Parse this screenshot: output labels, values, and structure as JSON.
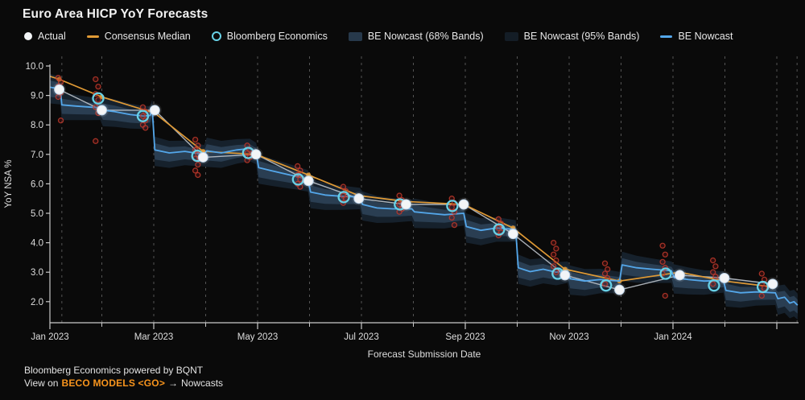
{
  "title": "Euro Area HICP YoY Forecasts",
  "legend": {
    "items": [
      {
        "label": "Actual",
        "marker": "dot",
        "color": "#f3f5f7"
      },
      {
        "label": "Consensus Median",
        "marker": "dash",
        "color": "#e09a35"
      },
      {
        "label": "Bloomberg Economics",
        "marker": "ring",
        "color": "#68d1e6"
      },
      {
        "label": "BE Nowcast (68% Bands)",
        "marker": "swatch",
        "color": "#27394b"
      },
      {
        "label": "BE Nowcast (95% Bands)",
        "marker": "swatch",
        "color": "#141d26"
      },
      {
        "label": "BE Nowcast",
        "marker": "dash",
        "color": "#54a7ea"
      }
    ]
  },
  "footer": {
    "line1": "Bloomberg Economics powered by BQNT",
    "view_on": "View on",
    "beco_link": "BECO MODELS <GO>",
    "arrow": "→",
    "nowcasts": "Nowcasts"
  },
  "colors": {
    "background": "#0a0a0a",
    "text": "#e6e6e6",
    "tick_text": "#dedede",
    "axis": "#c9c9c9",
    "gridline": "#545454",
    "nowcast_blue": "#54a7ea",
    "consensus_orange": "#e09a35",
    "be_cyan": "#68d1e6",
    "actual_white": "#f3f5f7",
    "actual_line_gray": "#c7cdd3",
    "economist_red": "#c0392b",
    "band68": "#2a3e52",
    "band95": "#16212c",
    "beco_orange": "#f7941d"
  },
  "chart_data": {
    "type": "line",
    "title": "Euro Area HICP YoY Forecasts",
    "xlabel": "Forecast Submission Date",
    "ylabel": "YoY NSA %",
    "x_unit": "months_since_jan_2023",
    "x_range": [
      0,
      14.4
    ],
    "y_range_ticks": [
      2,
      10
    ],
    "y_tick_labels": [
      "2.0",
      "3.0",
      "4.0",
      "5.0",
      "6.0",
      "7.0",
      "8.0",
      "9.0",
      "10.0"
    ],
    "x_major_tick_months": [
      0,
      2,
      4,
      6,
      8,
      10,
      12,
      14
    ],
    "x_major_tick_labels": [
      "Jan 2023",
      "Mar 2023",
      "May 2023",
      "Jul 2023",
      "Sep 2023",
      "Nov 2023",
      "Jan 2024",
      ""
    ],
    "x_minor_tick_months": [
      1,
      3,
      5,
      7,
      9,
      11,
      13
    ],
    "gridline_months": [
      0.23,
      1,
      2,
      3,
      4,
      5,
      6,
      7,
      8,
      9,
      10,
      11,
      12,
      13,
      14,
      14.39
    ],
    "grid": "vertical-dashed-only",
    "legend_position": "top",
    "series": {
      "nowcast": {
        "name": "BE Nowcast",
        "points": [
          [
            0.0,
            9.28
          ],
          [
            0.2,
            9.22
          ],
          [
            0.23,
            8.68
          ],
          [
            0.5,
            8.64
          ],
          [
            0.8,
            8.6
          ],
          [
            0.97,
            8.58
          ],
          [
            1.02,
            8.5
          ],
          [
            1.25,
            8.45
          ],
          [
            1.55,
            8.35
          ],
          [
            1.8,
            8.3
          ],
          [
            1.93,
            8.32
          ],
          [
            1.97,
            8.55
          ],
          [
            2.02,
            7.15
          ],
          [
            2.3,
            7.05
          ],
          [
            2.6,
            7.1
          ],
          [
            2.97,
            7.0
          ],
          [
            3.02,
            7.12
          ],
          [
            3.3,
            7.05
          ],
          [
            3.6,
            7.15
          ],
          [
            3.85,
            7.2
          ],
          [
            3.97,
            7.08
          ],
          [
            4.02,
            6.55
          ],
          [
            4.25,
            6.45
          ],
          [
            4.5,
            6.35
          ],
          [
            4.75,
            6.25
          ],
          [
            4.97,
            6.15
          ],
          [
            5.02,
            5.72
          ],
          [
            5.3,
            5.62
          ],
          [
            5.6,
            5.58
          ],
          [
            5.97,
            5.55
          ],
          [
            6.02,
            5.3
          ],
          [
            6.3,
            5.18
          ],
          [
            6.6,
            5.15
          ],
          [
            6.97,
            5.15
          ],
          [
            7.02,
            5.05
          ],
          [
            7.3,
            5.0
          ],
          [
            7.6,
            4.95
          ],
          [
            7.97,
            5.0
          ],
          [
            8.02,
            4.55
          ],
          [
            8.3,
            4.42
          ],
          [
            8.6,
            4.5
          ],
          [
            8.97,
            4.45
          ],
          [
            9.02,
            3.15
          ],
          [
            9.25,
            3.02
          ],
          [
            9.5,
            3.1
          ],
          [
            9.75,
            3.0
          ],
          [
            9.97,
            3.05
          ],
          [
            10.02,
            2.78
          ],
          [
            10.3,
            2.7
          ],
          [
            10.6,
            2.75
          ],
          [
            10.97,
            2.7
          ],
          [
            11.02,
            3.25
          ],
          [
            11.3,
            3.15
          ],
          [
            11.6,
            3.1
          ],
          [
            11.97,
            3.05
          ],
          [
            12.02,
            2.82
          ],
          [
            12.3,
            2.75
          ],
          [
            12.6,
            2.7
          ],
          [
            12.97,
            2.72
          ],
          [
            13.02,
            2.38
          ],
          [
            13.3,
            2.3
          ],
          [
            13.6,
            2.33
          ],
          [
            13.97,
            2.3
          ],
          [
            14.02,
            2.1
          ],
          [
            14.15,
            2.15
          ],
          [
            14.25,
            1.95
          ],
          [
            14.33,
            2.0
          ],
          [
            14.4,
            1.88
          ]
        ]
      },
      "consensus": {
        "name": "Consensus Median",
        "points": [
          [
            0.0,
            9.65
          ],
          [
            0.18,
            9.55
          ],
          [
            1.0,
            8.95
          ],
          [
            2.02,
            8.4
          ],
          [
            2.95,
            7.1
          ],
          [
            3.97,
            7.0
          ],
          [
            4.98,
            6.3
          ],
          [
            5.95,
            5.6
          ],
          [
            6.86,
            5.4
          ],
          [
            7.97,
            5.3
          ],
          [
            8.92,
            4.5
          ],
          [
            9.92,
            3.1
          ],
          [
            10.97,
            2.7
          ],
          [
            12.13,
            3.0
          ],
          [
            12.99,
            2.7
          ],
          [
            13.92,
            2.5
          ]
        ]
      },
      "actual": {
        "name": "Actual",
        "points": [
          [
            0.18,
            9.2
          ],
          [
            1.0,
            8.5
          ],
          [
            2.02,
            8.5
          ],
          [
            2.95,
            6.9
          ],
          [
            3.97,
            7.0
          ],
          [
            4.98,
            6.1
          ],
          [
            5.95,
            5.5
          ],
          [
            6.86,
            5.3
          ],
          [
            7.97,
            5.3
          ],
          [
            8.92,
            4.3
          ],
          [
            9.92,
            2.9
          ],
          [
            10.97,
            2.4
          ],
          [
            12.13,
            2.9
          ],
          [
            12.99,
            2.8
          ],
          [
            13.92,
            2.6
          ]
        ]
      },
      "bloomberg_economics": {
        "name": "Bloomberg Economics",
        "points": [
          [
            0.93,
            8.9
          ],
          [
            1.79,
            8.3
          ],
          [
            2.84,
            6.95
          ],
          [
            3.82,
            7.05
          ],
          [
            4.78,
            6.15
          ],
          [
            5.66,
            5.55
          ],
          [
            6.74,
            5.3
          ],
          [
            7.75,
            5.25
          ],
          [
            8.65,
            4.45
          ],
          [
            9.78,
            2.95
          ],
          [
            10.71,
            2.55
          ],
          [
            11.86,
            2.95
          ],
          [
            12.79,
            2.55
          ],
          [
            13.73,
            2.5
          ]
        ]
      },
      "economist_forecasts": {
        "name": "Individual forecasts",
        "clusters": [
          {
            "x": 0.16,
            "values": [
              9.6,
              9.45,
              9.3,
              9.1,
              8.95,
              8.15
            ]
          },
          {
            "x": 0.88,
            "values": [
              9.55,
              9.3,
              9.05,
              8.85,
              8.6,
              8.4,
              7.45
            ]
          },
          {
            "x": 1.79,
            "values": [
              8.6,
              8.45,
              8.3,
              8.15,
              8.0,
              7.9
            ]
          },
          {
            "x": 2.8,
            "values": [
              7.5,
              7.3,
              7.15,
              7.0,
              6.85,
              6.65,
              6.45,
              6.3
            ]
          },
          {
            "x": 3.8,
            "values": [
              7.3,
              7.15,
              7.05,
              6.9,
              6.8
            ]
          },
          {
            "x": 4.77,
            "values": [
              6.6,
              6.45,
              6.3,
              6.15,
              6.0,
              5.9
            ]
          },
          {
            "x": 5.65,
            "values": [
              5.9,
              5.75,
              5.6,
              5.5,
              5.35
            ]
          },
          {
            "x": 6.73,
            "values": [
              5.6,
              5.45,
              5.3,
              5.15,
              5.05
            ]
          },
          {
            "x": 7.74,
            "values": [
              5.5,
              5.35,
              5.2,
              5.05,
              4.85,
              4.6
            ]
          },
          {
            "x": 8.64,
            "values": [
              4.8,
              4.65,
              4.5,
              4.35,
              4.25
            ]
          },
          {
            "x": 9.7,
            "values": [
              4.0,
              3.8,
              3.6,
              3.4,
              3.2,
              3.0
            ]
          },
          {
            "x": 10.69,
            "values": [
              3.3,
              3.1,
              2.95,
              2.8,
              2.6
            ]
          },
          {
            "x": 11.8,
            "values": [
              3.9,
              3.6,
              3.35,
              3.15,
              2.95,
              2.2
            ]
          },
          {
            "x": 12.77,
            "values": [
              3.4,
              3.2,
              3.0,
              2.85,
              2.6
            ]
          },
          {
            "x": 13.71,
            "values": [
              2.95,
              2.75,
              2.6,
              2.45,
              2.2
            ]
          }
        ]
      },
      "bands": {
        "band68_label": "BE Nowcast (68% Bands)",
        "band95_label": "BE Nowcast (95% Bands)",
        "width68_start_end": [
          0.28,
          0.18
        ],
        "width95_start_end": [
          0.5,
          0.36
        ],
        "center_offset": -0.05
      }
    }
  }
}
